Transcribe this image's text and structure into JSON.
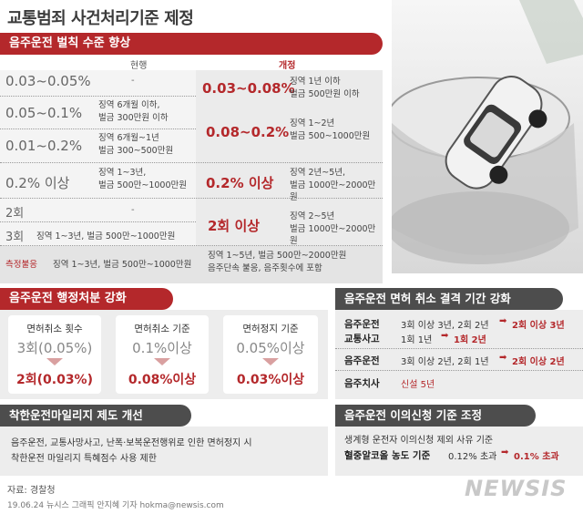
{
  "title": "교통범죄 사건처리기준 제정",
  "drunk_penalty": {
    "heading": "음주운전 벌칙 수준 향상",
    "col_current": "현행",
    "col_revised": "개정",
    "rows": [
      {
        "level": "0.03~0.05%",
        "current": "-"
      },
      {
        "level": "0.05~0.1%",
        "current_1": "징역 6개월 이하,",
        "current_2": "벌금 300만원 이하"
      },
      {
        "level": "0.01~0.2%",
        "current_1": "징역 6개월~1년",
        "current_2": "벌금 300~500만원"
      },
      {
        "level": "0.2% 이상",
        "current_1": "징역 1~3년,",
        "current_2": "벌금 500만~1000만원"
      },
      {
        "level": "2회",
        "current": "-"
      },
      {
        "level": "3회",
        "current": "징역 1~3년, 벌금 500만~1000만원"
      }
    ],
    "revised": [
      {
        "level": "0.03~0.08%",
        "line1": "징역 1년 이하",
        "line2": "벌금 500만원 이하"
      },
      {
        "level": "0.08~0.2%",
        "line1": "징역 1~2년",
        "line2": "벌금 500~1000만원"
      },
      {
        "level": "0.2% 이상",
        "line1": "징역 2년~5년,",
        "line2": "벌금 1000만~2000만원"
      },
      {
        "level": "2회 이상",
        "line1": "징역 2~5년",
        "line2": "벌금 1000만~2000만원"
      }
    ],
    "refusal": {
      "label": "측정불응",
      "current": "징역 1~3년, 벌금 500만~1000만원",
      "revised_1": "징역 1~5년, 벌금 500만~2000만원",
      "revised_2": "음주단속 불응, 음주횟수에 포함"
    }
  },
  "admin": {
    "heading": "음주운전  행정처분 강화",
    "cards": [
      {
        "title": "면허취소 횟수",
        "old": "3회(0.05%)",
        "new": "2회(0.03%)"
      },
      {
        "title": "면허취소 기준",
        "old": "0.1%이상",
        "new": "0.08%이상"
      },
      {
        "title": "면허정지 기준",
        "old": "0.05%이상",
        "new": "0.03%이상"
      }
    ]
  },
  "mileage": {
    "heading": "착한운전마일리지 제도 개선",
    "line1": "음주운전, 교통사망사고, 난폭·보복운전행위로 인한 면허정지 시",
    "line2": "착한운전 마일리지 특혜점수 사용 제한"
  },
  "license_period": {
    "heading": "음주운전 면허 취소 결격 기간 강화",
    "r1_label_1": "음주운전",
    "r1_label_2": "교통사고",
    "r1_a_old": "3회 이상 3년, 2회 2년",
    "r1_a_arrow": "➡",
    "r1_a_new": "2회 이상 3년",
    "r1_b_old": "1회  1년",
    "r1_b_arrow": "➡",
    "r1_b_new": "1회 2년",
    "r2_label": "음주운전",
    "r2_old": "3회 이상 2년, 2회 1년",
    "r2_arrow": "➡",
    "r2_new": "2회 이상 2년",
    "r3_label": "음주치사",
    "r3_new": "신설 5년"
  },
  "appeal": {
    "heading": "음주운전 이의신청 기준 조정",
    "line1": "생계형 운전자 이의신청 제외 사유 기준",
    "label": "혈중알코올 농도 기준",
    "old": "0.12% 초과",
    "arrow": "➡",
    "new": "0.1% 초과"
  },
  "source": "자료: 경찰청",
  "credit": "19.06.24 뉴시스 그래픽 안지혜 기자 hokma@newsis.com",
  "logo": "NEWSIS",
  "colors": {
    "accent": "#b4282b",
    "dark_header": "#4d4d4d"
  }
}
